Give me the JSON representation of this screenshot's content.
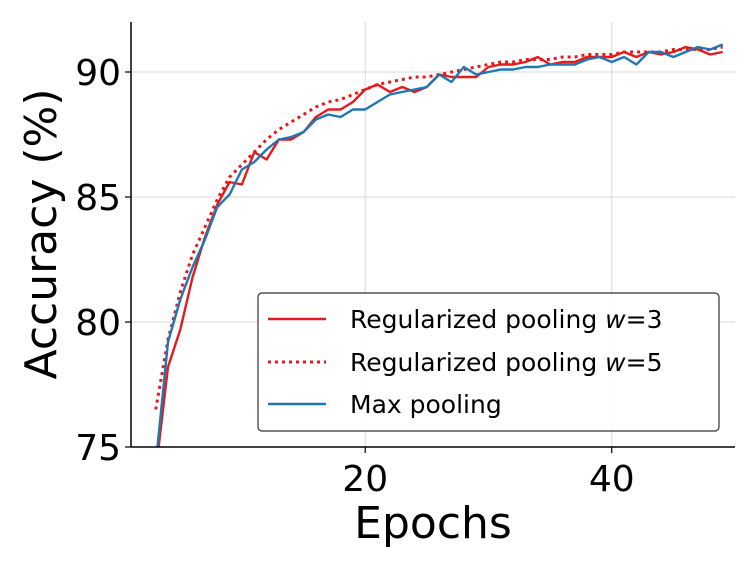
{
  "chart_data": {
    "type": "line",
    "xlabel": "Epochs",
    "ylabel": "Accuracy (%)",
    "xlim": [
      1,
      50
    ],
    "ylim": [
      75,
      92
    ],
    "xticks": [
      20,
      40
    ],
    "yticks": [
      75,
      80,
      85,
      90
    ],
    "grid": true,
    "legend_position": "lower-right",
    "x": [
      3,
      4,
      5,
      6,
      7,
      8,
      9,
      10,
      11,
      12,
      13,
      14,
      15,
      16,
      17,
      18,
      19,
      20,
      21,
      22,
      23,
      24,
      25,
      26,
      27,
      28,
      29,
      30,
      31,
      32,
      33,
      34,
      35,
      36,
      37,
      38,
      39,
      40,
      41,
      42,
      43,
      44,
      45,
      46,
      47,
      48,
      49
    ],
    "series": [
      {
        "name": "Regularized pooling w=3",
        "color": "#e41a1c",
        "style": "solid",
        "values": [
          74.0,
          78.2,
          79.7,
          81.8,
          83.4,
          84.7,
          85.6,
          85.5,
          86.8,
          86.5,
          87.3,
          87.3,
          87.6,
          88.2,
          88.5,
          88.5,
          88.8,
          89.3,
          89.5,
          89.2,
          89.4,
          89.2,
          89.4,
          89.9,
          89.8,
          89.8,
          89.8,
          90.2,
          90.3,
          90.3,
          90.4,
          90.6,
          90.3,
          90.4,
          90.4,
          90.6,
          90.6,
          90.6,
          90.8,
          90.6,
          90.8,
          90.7,
          90.8,
          91.0,
          90.9,
          90.7,
          90.8
        ]
      },
      {
        "name": "Regularized pooling w=5",
        "color": "#e41a1c",
        "style": "dotted",
        "values": [
          76.5,
          79.3,
          81.2,
          82.7,
          83.8,
          84.9,
          85.8,
          86.3,
          86.8,
          87.3,
          87.7,
          88.0,
          88.3,
          88.6,
          88.8,
          88.9,
          89.1,
          89.3,
          89.5,
          89.6,
          89.7,
          89.8,
          89.8,
          89.9,
          90.0,
          90.1,
          90.2,
          90.3,
          90.4,
          90.4,
          90.5,
          90.5,
          90.5,
          90.6,
          90.6,
          90.7,
          90.7,
          90.7,
          90.8,
          90.8,
          90.8,
          90.8,
          90.9,
          90.9,
          90.9,
          90.9,
          91.0
        ]
      },
      {
        "name": "Max pooling",
        "color": "#1f77b4",
        "style": "solid",
        "values": [
          74.3,
          79.2,
          80.9,
          82.2,
          83.3,
          84.6,
          85.1,
          86.1,
          86.4,
          86.9,
          87.3,
          87.4,
          87.6,
          88.1,
          88.3,
          88.2,
          88.5,
          88.5,
          88.8,
          89.1,
          89.2,
          89.3,
          89.4,
          89.9,
          89.6,
          90.2,
          89.9,
          90.0,
          90.1,
          90.1,
          90.2,
          90.2,
          90.3,
          90.3,
          90.3,
          90.5,
          90.6,
          90.4,
          90.6,
          90.3,
          90.8,
          90.8,
          90.6,
          90.8,
          91.0,
          90.9,
          91.1
        ]
      }
    ]
  },
  "legend": {
    "items": [
      {
        "prefix": "Regularized pooling ",
        "var": "w",
        "suffix": "=3"
      },
      {
        "prefix": "Regularized pooling ",
        "var": "w",
        "suffix": "=5"
      },
      {
        "prefix": "Max pooling",
        "var": "",
        "suffix": ""
      }
    ]
  }
}
